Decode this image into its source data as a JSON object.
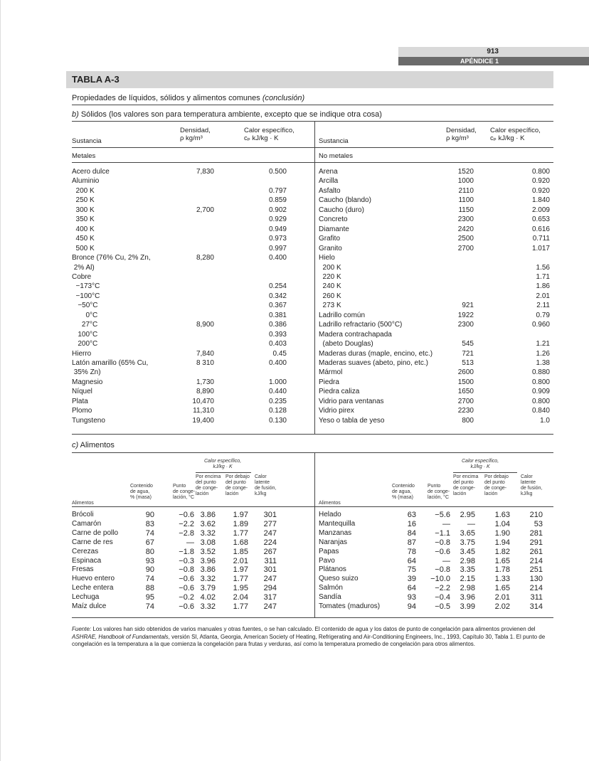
{
  "header": {
    "page_number": "913",
    "section": "APÉNDICE 1"
  },
  "table_title": "TABLA A-3",
  "subtitle": "Propiedades de líquidos, sólidos y alimentos comunes",
  "subtitle_italic": "(conclusión)",
  "solids": {
    "heading_prefix": "b)",
    "heading": " Sólidos (los valores son para temperatura ambiente, excepto que se indique otra cosa)",
    "col_substance": "Sustancia",
    "col_density_1": "Densidad,",
    "col_density_2": "ρ kg/m³",
    "col_cp_1": "Calor específico,",
    "col_cp_2": "cₚ kJ/kg · K",
    "left_group": "Metales",
    "right_group": "No metales",
    "left_rows": [
      [
        "Acero dulce",
        "7,830",
        "0.500"
      ],
      [
        "Aluminio",
        "",
        ""
      ],
      [
        "  200 K",
        "",
        "0.797"
      ],
      [
        "  250 K",
        "",
        "0.859"
      ],
      [
        "  300 K",
        "2,700",
        "0.902"
      ],
      [
        "  350 K",
        "",
        "0.929"
      ],
      [
        "  400 K",
        "",
        "0.949"
      ],
      [
        "  450 K",
        "",
        "0.973"
      ],
      [
        "  500 K",
        "",
        "0.997"
      ],
      [
        "Bronce (76% Cu, 2% Zn,",
        "8,280",
        "0.400"
      ],
      [
        " 2% Al)",
        "",
        ""
      ],
      [
        "Cobre",
        "",
        ""
      ],
      [
        "  −173°C",
        "",
        "0.254"
      ],
      [
        "  −100°C",
        "",
        "0.342"
      ],
      [
        "   −50°C",
        "",
        "0.367"
      ],
      [
        "       0°C",
        "",
        "0.381"
      ],
      [
        "     27°C",
        "8,900",
        "0.386"
      ],
      [
        "   100°C",
        "",
        "0.393"
      ],
      [
        "   200°C",
        "",
        "0.403"
      ],
      [
        "Hierro",
        "7,840",
        "0.45"
      ],
      [
        "Latón amarillo (65% Cu,",
        "8 310",
        "0.400"
      ],
      [
        " 35% Zn)",
        "",
        ""
      ],
      [
        "Magnesio",
        "1,730",
        "1.000"
      ],
      [
        "Níquel",
        "8,890",
        "0.440"
      ],
      [
        "Plata",
        "10,470",
        "0.235"
      ],
      [
        "Plomo",
        "11,310",
        "0.128"
      ],
      [
        "Tungsteno",
        "19,400",
        "0.130"
      ]
    ],
    "right_rows": [
      [
        "Arena",
        "1520",
        "0.800"
      ],
      [
        "Arcilla",
        "1000",
        "0.920"
      ],
      [
        "Asfalto",
        "2110",
        "0.920"
      ],
      [
        "Caucho (blando)",
        "1100",
        "1.840"
      ],
      [
        "Caucho (duro)",
        "1150",
        "2.009"
      ],
      [
        "Concreto",
        "2300",
        "0.653"
      ],
      [
        "Diamante",
        "2420",
        "0.616"
      ],
      [
        "Grafito",
        "2500",
        "0.711"
      ],
      [
        "Granito",
        "2700",
        "1.017"
      ],
      [
        "Hielo",
        "",
        ""
      ],
      [
        "  200 K",
        "",
        "1.56"
      ],
      [
        "  220 K",
        "",
        "1.71"
      ],
      [
        "  240 K",
        "",
        "1.86"
      ],
      [
        "  260 K",
        "",
        "2.01"
      ],
      [
        "  273 K",
        "921",
        "2.11"
      ],
      [
        "Ladrillo común",
        "1922",
        "0.79"
      ],
      [
        "Ladrillo refractario (500°C)",
        "2300",
        "0.960"
      ],
      [
        "Madera contrachapada",
        "",
        ""
      ],
      [
        "  (abeto Douglas)",
        "545",
        "1.21"
      ],
      [
        "Maderas duras (maple, encino, etc.)",
        "721",
        "1.26"
      ],
      [
        "Maderas suaves (abeto, pino, etc.)",
        "513",
        "1.38"
      ],
      [
        "Mármol",
        "2600",
        "0.880"
      ],
      [
        "Piedra",
        "1500",
        "0.800"
      ],
      [
        "Piedra caliza",
        "1650",
        "0.909"
      ],
      [
        "Vidrio para ventanas",
        "2700",
        "0.800"
      ],
      [
        "Vidrio pirex",
        "2230",
        "0.840"
      ],
      [
        "Yeso o tabla de yeso",
        "800",
        "1.0"
      ]
    ]
  },
  "foods": {
    "heading_prefix": "c)",
    "heading": " Alimentos",
    "col_food": "Alimentos",
    "col_water": "Contenido\nde agua,\n% (masa)",
    "col_freeze": "Punto\nde conge-\nlación, °C",
    "cp_group": "Calor específico,\nkJ/kg · K",
    "col_above": "Por encima\ndel punto\nde conge-\nlación",
    "col_below": "Por debajo\ndel punto\nde conge-\nlación",
    "col_latent": "Calor\nlatente\nde fusión,\nkJ/kg",
    "left_rows": [
      [
        "Brócoli",
        "90",
        "−0.6",
        "3.86",
        "1.97",
        "301"
      ],
      [
        "Camarón",
        "83",
        "−2.2",
        "3.62",
        "1.89",
        "277"
      ],
      [
        "Carne de pollo",
        "74",
        "−2.8",
        "3.32",
        "1.77",
        "247"
      ],
      [
        "Carne de res",
        "67",
        "—",
        "3.08",
        "1.68",
        "224"
      ],
      [
        "Cerezas",
        "80",
        "−1.8",
        "3.52",
        "1.85",
        "267"
      ],
      [
        "Espinaca",
        "93",
        "−0.3",
        "3.96",
        "2.01",
        "311"
      ],
      [
        "Fresas",
        "90",
        "−0.8",
        "3.86",
        "1.97",
        "301"
      ],
      [
        "Huevo entero",
        "74",
        "−0.6",
        "3.32",
        "1.77",
        "247"
      ],
      [
        "Leche entera",
        "88",
        "−0.6",
        "3.79",
        "1.95",
        "294"
      ],
      [
        "Lechuga",
        "95",
        "−0.2",
        "4.02",
        "2.04",
        "317"
      ],
      [
        "Maíz dulce",
        "74",
        "−0.6",
        "3.32",
        "1.77",
        "247"
      ]
    ],
    "right_rows": [
      [
        "Helado",
        "63",
        "−5.6",
        "2.95",
        "1.63",
        "210"
      ],
      [
        "Mantequilla",
        "16",
        "—",
        "—",
        "1.04",
        "53"
      ],
      [
        "Manzanas",
        "84",
        "−1.1",
        "3.65",
        "1.90",
        "281"
      ],
      [
        "Naranjas",
        "87",
        "−0.8",
        "3.75",
        "1.94",
        "291"
      ],
      [
        "Papas",
        "78",
        "−0.6",
        "3.45",
        "1.82",
        "261"
      ],
      [
        "Pavo",
        "64",
        "—",
        "2.98",
        "1.65",
        "214"
      ],
      [
        "Plátanos",
        "75",
        "−0.8",
        "3.35",
        "1.78",
        "251"
      ],
      [
        "Queso suizo",
        "39",
        "−10.0",
        "2.15",
        "1.33",
        "130"
      ],
      [
        "Salmón",
        "64",
        "−2.2",
        "2.98",
        "1.65",
        "214"
      ],
      [
        "Sandía",
        "93",
        "−0.4",
        "3.96",
        "2.01",
        "311"
      ],
      [
        "Tomates (maduros)",
        "94",
        "−0.5",
        "3.99",
        "2.02",
        "314"
      ]
    ]
  },
  "footnote": {
    "label": "Fuente:",
    "text1": " Los valores han sido obtenidos de varios manuales y otras fuentes, o se han calculado. El contenido de agua y los datos de punto de congelación para alimentos provienen del ",
    "italic": "ASHRAE, Handbook of Fundamentals",
    "text2": ", versión SI, Atlanta, Georgia, American Society of Heating, Refrigerating and Air-Conditioning Engineers, Inc., 1993, Capítulo 30, Tabla 1. El punto de congelación es la temperatura a la que comienza la congelación para frutas y verduras, así como la temperatura promedio de congelación para otros alimentos."
  }
}
